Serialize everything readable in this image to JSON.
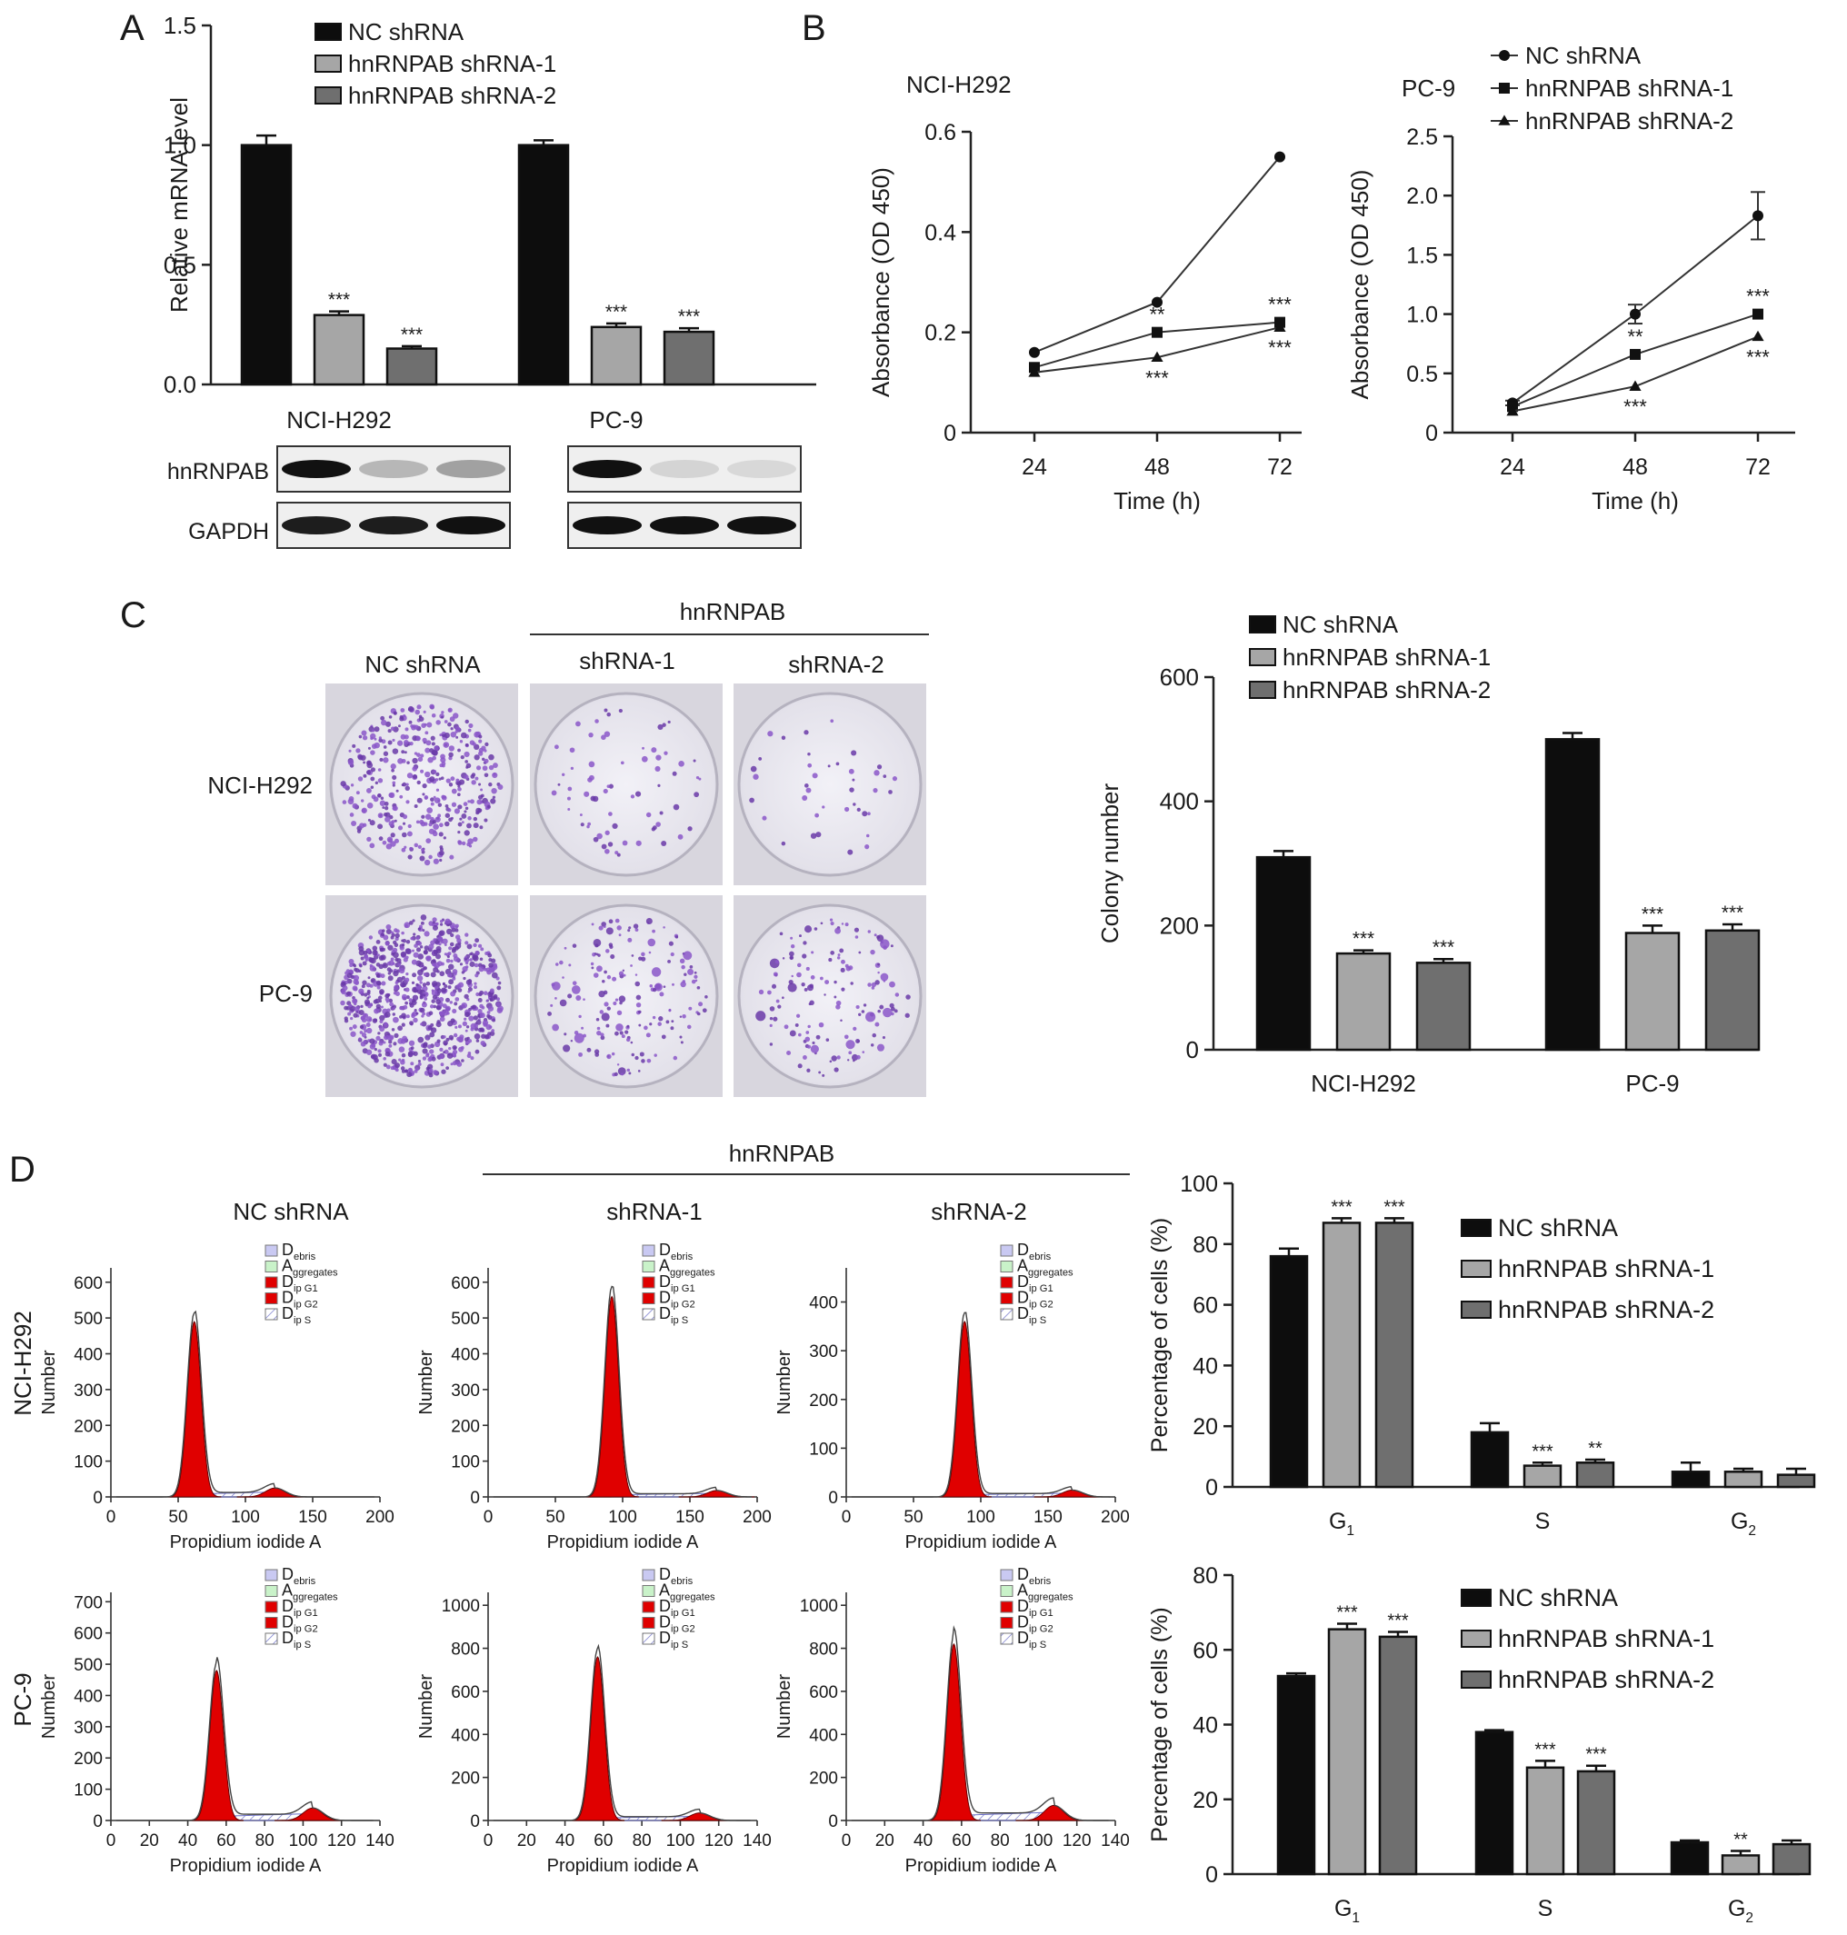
{
  "colors": {
    "nc": "#0d0d0d",
    "sh1": "#a6a6a6",
    "sh2": "#6f6f6f",
    "peak": "#e00000"
  },
  "panel_letters": [
    "A",
    "B",
    "C",
    "D"
  ],
  "groups": [
    "NC shRNA",
    "hnRNPAB shRNA-1",
    "hnRNPAB shRNA-2"
  ],
  "chart_data": [
    {
      "id": "A",
      "type": "bar",
      "ylabel": "Relative mRNA level",
      "yticks": [
        "0.0",
        "0.5",
        "1.0",
        "1.5"
      ],
      "ylim": [
        0,
        1.5
      ],
      "categories": [
        "NCI-H292",
        "PC-9"
      ],
      "series": [
        {
          "name": "NC shRNA",
          "values": [
            1.0,
            1.0
          ],
          "errors": [
            0.04,
            0.02
          ],
          "sig": [
            "",
            ""
          ]
        },
        {
          "name": "hnRNPAB shRNA-1",
          "values": [
            0.29,
            0.24
          ],
          "errors": [
            0.015,
            0.015
          ],
          "sig": [
            "***",
            "***"
          ]
        },
        {
          "name": "hnRNPAB shRNA-2",
          "values": [
            0.15,
            0.22
          ],
          "errors": [
            0.01,
            0.015
          ],
          "sig": [
            "***",
            "***"
          ]
        }
      ],
      "legend": "top"
    },
    {
      "id": "B1",
      "type": "line",
      "title": "NCI-H292",
      "ylabel": "Absorbance (OD 450)",
      "xlabel": "Time (h)",
      "x": [
        24,
        48,
        72
      ],
      "ylim": [
        0,
        0.6
      ],
      "yticks": [
        "0",
        "0.2",
        "0.4",
        "0.6"
      ],
      "series": [
        {
          "name": "NC shRNA",
          "values": [
            0.16,
            0.26,
            0.55
          ],
          "sig": [
            "",
            "",
            ""
          ]
        },
        {
          "name": "hnRNPAB shRNA-1",
          "values": [
            0.13,
            0.2,
            0.22
          ],
          "sig": [
            "",
            "**",
            "***"
          ]
        },
        {
          "name": "hnRNPAB shRNA-2",
          "values": [
            0.12,
            0.15,
            0.21
          ],
          "sig": [
            "",
            "***",
            "***"
          ]
        }
      ]
    },
    {
      "id": "B2",
      "type": "line",
      "title": "PC-9",
      "ylabel": "Absorbance (OD 450)",
      "xlabel": "Time (h)",
      "x": [
        24,
        48,
        72
      ],
      "ylim": [
        0,
        2.5
      ],
      "yticks": [
        "0",
        "0.5",
        "1.0",
        "1.5",
        "2.0",
        "2.5"
      ],
      "series": [
        {
          "name": "NC shRNA",
          "values": [
            0.25,
            1.0,
            1.83
          ],
          "errors": [
            0.02,
            0.08,
            0.2
          ],
          "sig": [
            "",
            "",
            ""
          ]
        },
        {
          "name": "hnRNPAB shRNA-1",
          "values": [
            0.22,
            0.66,
            1.0
          ],
          "sig": [
            "",
            "**",
            "***"
          ]
        },
        {
          "name": "hnRNPAB shRNA-2",
          "values": [
            0.18,
            0.39,
            0.81
          ],
          "sig": [
            "",
            "***",
            "***"
          ]
        }
      ],
      "legend": "top"
    },
    {
      "id": "C",
      "type": "bar",
      "ylabel": "Colony number",
      "yticks": [
        "0",
        "200",
        "400",
        "600"
      ],
      "ylim": [
        0,
        600
      ],
      "categories": [
        "NCI-H292",
        "PC-9"
      ],
      "series": [
        {
          "name": "NC shRNA",
          "values": [
            310,
            500
          ],
          "errors": [
            10,
            10
          ],
          "sig": [
            "",
            ""
          ]
        },
        {
          "name": "hnRNPAB shRNA-1",
          "values": [
            155,
            188
          ],
          "errors": [
            5,
            12
          ],
          "sig": [
            "***",
            "***"
          ]
        },
        {
          "name": "hnRNPAB shRNA-2",
          "values": [
            140,
            192
          ],
          "errors": [
            6,
            10
          ],
          "sig": [
            "***",
            "***"
          ]
        }
      ],
      "legend": "top"
    },
    {
      "id": "D1",
      "type": "bar",
      "ylabel": "Percentage of cells (%)",
      "yticks": [
        "0",
        "20",
        "40",
        "60",
        "80",
        "100"
      ],
      "ylim": [
        0,
        100
      ],
      "categories": [
        "G1",
        "S",
        "G2"
      ],
      "series": [
        {
          "name": "NC shRNA",
          "values": [
            76,
            18,
            5
          ],
          "errors": [
            2.5,
            3,
            3
          ],
          "sig": [
            "",
            "",
            ""
          ]
        },
        {
          "name": "hnRNPAB shRNA-1",
          "values": [
            87,
            7,
            5
          ],
          "errors": [
            1.5,
            1,
            1
          ],
          "sig": [
            "***",
            "***",
            ""
          ]
        },
        {
          "name": "hnRNPAB shRNA-2",
          "values": [
            87,
            8,
            4
          ],
          "errors": [
            1.5,
            1,
            2
          ],
          "sig": [
            "***",
            "**",
            ""
          ]
        }
      ],
      "legend": "right"
    },
    {
      "id": "D2",
      "type": "bar",
      "ylabel": "Percentage of cells (%)",
      "yticks": [
        "0",
        "20",
        "40",
        "60",
        "80"
      ],
      "ylim": [
        0,
        80
      ],
      "categories": [
        "G1",
        "S",
        "G2"
      ],
      "series": [
        {
          "name": "NC shRNA",
          "values": [
            53,
            38,
            8.5
          ],
          "errors": [
            0.7,
            0.5,
            0.5
          ],
          "sig": [
            "",
            "",
            ""
          ]
        },
        {
          "name": "hnRNPAB shRNA-1",
          "values": [
            65.5,
            28.5,
            5
          ],
          "errors": [
            1.5,
            1.8,
            1.2
          ],
          "sig": [
            "***",
            "***",
            "**"
          ]
        },
        {
          "name": "hnRNPAB shRNA-2",
          "values": [
            63.5,
            27.5,
            8
          ],
          "errors": [
            1.3,
            1.5,
            1
          ],
          "sig": [
            "***",
            "***",
            ""
          ]
        }
      ],
      "legend": "right"
    }
  ],
  "westernblot": {
    "row_labels": [
      "hnRNPAB",
      "GAPDH"
    ],
    "lines": [
      "NCI-H292",
      "PC-9"
    ],
    "band_intensity": {
      "NCI-H292": {
        "hnRNPAB": [
          1.0,
          0.25,
          0.35
        ],
        "GAPDH": [
          0.95,
          0.95,
          1.0
        ]
      },
      "PC-9": {
        "hnRNPAB": [
          1.0,
          0.12,
          0.1
        ],
        "GAPDH": [
          1.0,
          1.0,
          1.0
        ]
      }
    }
  },
  "colony": {
    "group_header": "hnRNPAB",
    "col_labels": [
      "NC shRNA",
      "shRNA-1",
      "shRNA-2"
    ],
    "row_labels": [
      "NCI-H292",
      "PC-9"
    ]
  },
  "flow": {
    "group_header": "hnRNPAB",
    "col_labels": [
      "NC shRNA",
      "shRNA-1",
      "shRNA-2"
    ],
    "row_labels": [
      "NCI-H292",
      "PC-9"
    ],
    "ylabel": "Number",
    "xlabel": "Propidium iodide A",
    "legend": [
      "Debris",
      "Aggregates",
      "Dip G1",
      "Dip G2",
      "Dip S"
    ],
    "rows": [
      {
        "xticks": [
          0,
          50,
          100,
          150,
          200
        ],
        "xlim": [
          0,
          200
        ],
        "plots": [
          {
            "yticks": [
              0,
              100,
              200,
              300,
              400,
              500,
              600
            ],
            "ylim": [
              0,
              640
            ],
            "g1_center": 62,
            "g1_peak": 490,
            "g2_center": 122,
            "g2_peak": 25
          },
          {
            "yticks": [
              0,
              100,
              200,
              300,
              400,
              500,
              600
            ],
            "ylim": [
              0,
              640
            ],
            "g1_center": 92,
            "g1_peak": 560,
            "g2_center": 170,
            "g2_peak": 18
          },
          {
            "yticks": [
              0,
              100,
              200,
              300,
              400
            ],
            "ylim": [
              0,
              470
            ],
            "g1_center": 88,
            "g1_peak": 360,
            "g2_center": 168,
            "g2_peak": 14
          }
        ]
      },
      {
        "xticks": [
          0,
          20,
          40,
          60,
          80,
          100,
          120,
          140
        ],
        "xlim": [
          0,
          140
        ],
        "plots": [
          {
            "yticks": [
              0,
              100,
              200,
              300,
              400,
              500,
              600,
              700
            ],
            "ylim": [
              0,
              730
            ],
            "g1_center": 55,
            "g1_peak": 480,
            "g2_center": 105,
            "g2_peak": 40
          },
          {
            "yticks": [
              0,
              200,
              400,
              600,
              800,
              1000
            ],
            "ylim": [
              0,
              1060
            ],
            "g1_center": 57,
            "g1_peak": 760,
            "g2_center": 110,
            "g2_peak": 35
          },
          {
            "yticks": [
              0,
              200,
              400,
              600,
              800,
              1000
            ],
            "ylim": [
              0,
              1060
            ],
            "g1_center": 56,
            "g1_peak": 820,
            "g2_center": 108,
            "g2_peak": 70
          }
        ]
      }
    ]
  }
}
